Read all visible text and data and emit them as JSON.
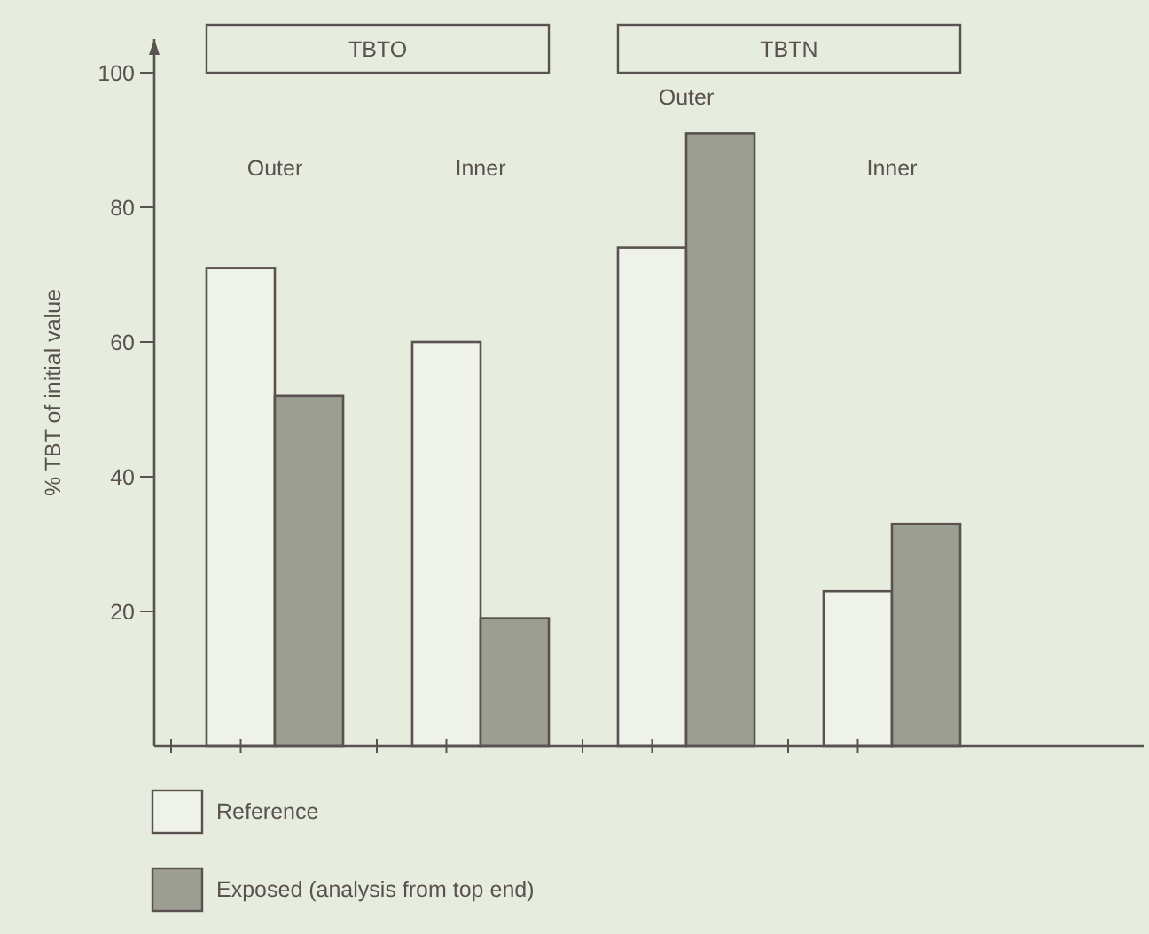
{
  "chart_data": {
    "type": "bar",
    "ylabel": "% TBT of initial value",
    "categories": [
      "Outer",
      "Inner",
      "Outer",
      "Inner"
    ],
    "series": [
      {
        "name": "Reference",
        "color": "#eef2e8",
        "values": [
          71,
          60,
          74,
          23
        ]
      },
      {
        "name": "Exposed (analysis from top end)",
        "color": "#9c9e92",
        "values": [
          52,
          19,
          91,
          33
        ]
      }
    ],
    "annotations": [
      "TBTO",
      "TBTN"
    ],
    "ylim": [
      0,
      105
    ],
    "yticks": [
      20,
      40,
      60,
      80,
      100
    ],
    "grid": false,
    "legend": "bottom left"
  }
}
